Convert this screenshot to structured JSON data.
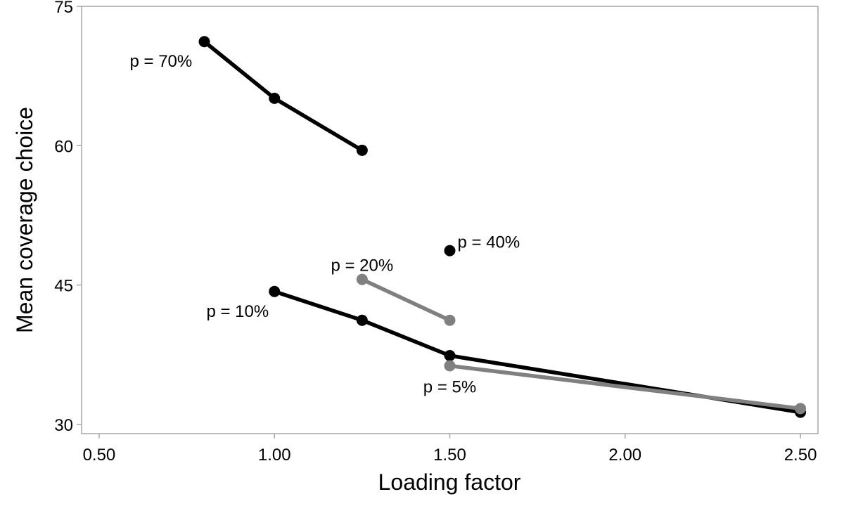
{
  "chart_data": {
    "type": "line",
    "xlabel": "Loading factor",
    "ylabel": "Mean coverage choice",
    "xlim": [
      0.45,
      2.55
    ],
    "ylim": [
      29,
      75
    ],
    "xticks": [
      0.5,
      1.0,
      1.5,
      2.0,
      2.5
    ],
    "xtick_labels": [
      "0.50",
      "1.00",
      "1.50",
      "2.00",
      "2.50"
    ],
    "yticks": [
      30,
      45,
      60,
      75
    ],
    "ytick_labels": [
      "30",
      "45",
      "60",
      "75"
    ],
    "grid": false,
    "legend": "none",
    "series": [
      {
        "label": "p = 70%",
        "color": "#000000",
        "x": [
          0.8,
          1.0,
          1.25
        ],
        "y": [
          71.2,
          65.1,
          59.5
        ],
        "label_anchor": "start",
        "label_placement": "below-left"
      },
      {
        "label": "p = 40%",
        "color": "#000000",
        "x": [
          1.5
        ],
        "y": [
          48.7
        ],
        "label_anchor": "start",
        "label_placement": "right"
      },
      {
        "label": "p = 20%",
        "color": "#808080",
        "x": [
          1.25,
          1.5
        ],
        "y": [
          45.6,
          41.2
        ],
        "label_anchor": "middle",
        "label_placement": "above"
      },
      {
        "label": "p = 10%",
        "color": "#000000",
        "x": [
          1.0,
          1.25,
          1.5,
          2.5
        ],
        "y": [
          44.3,
          41.2,
          37.4,
          31.3
        ],
        "label_anchor": "end",
        "label_placement": "below-left"
      },
      {
        "label": "p = 5%",
        "color": "#808080",
        "x": [
          1.5,
          2.5
        ],
        "y": [
          36.3,
          31.7
        ],
        "label_anchor": "middle",
        "label_placement": "below"
      }
    ]
  }
}
